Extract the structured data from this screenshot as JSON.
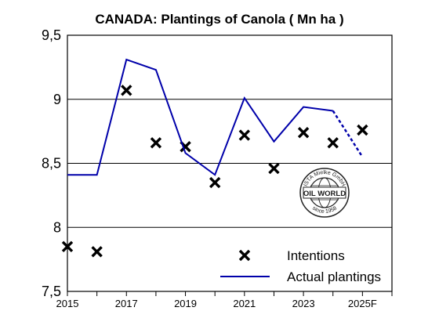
{
  "chart_data": {
    "type": "line",
    "title": "CANADA: Plantings of Canola ( Mn ha )",
    "xlabel": "",
    "ylabel": "",
    "x_tick_labels": [
      {
        "x": 2015,
        "label": "2015"
      },
      {
        "x": 2017,
        "label": "2017"
      },
      {
        "x": 2019,
        "label": "2019"
      },
      {
        "x": 2021,
        "label": "2021"
      },
      {
        "x": 2023,
        "label": "2023"
      },
      {
        "x": 2025,
        "label": "2025F"
      }
    ],
    "y_tick_labels": [
      {
        "y": 7.5,
        "label": "7,5"
      },
      {
        "y": 8,
        "label": "8"
      },
      {
        "y": 8.5,
        "label": "8,5"
      },
      {
        "y": 9,
        "label": "9"
      },
      {
        "y": 9.5,
        "label": "9,5"
      }
    ],
    "xlim": [
      2015,
      2026
    ],
    "ylim": [
      7.5,
      9.5
    ],
    "grid": "horizontal",
    "legend_position": "bottom-right",
    "series": [
      {
        "name": "Intentions",
        "kind": "scatter-x",
        "color": "#000000",
        "points": [
          {
            "x": 2015,
            "y": 7.85
          },
          {
            "x": 2016,
            "y": 7.81
          },
          {
            "x": 2017,
            "y": 9.07
          },
          {
            "x": 2018,
            "y": 8.66
          },
          {
            "x": 2019,
            "y": 8.63
          },
          {
            "x": 2020,
            "y": 8.35
          },
          {
            "x": 2021,
            "y": 8.72
          },
          {
            "x": 2022,
            "y": 8.46
          },
          {
            "x": 2023,
            "y": 8.74
          },
          {
            "x": 2024,
            "y": 8.66
          },
          {
            "x": 2025,
            "y": 8.76
          }
        ]
      },
      {
        "name": "Actual plantings",
        "kind": "line",
        "color": "#0000aa",
        "points": [
          {
            "x": 2015,
            "y": 8.41
          },
          {
            "x": 2016,
            "y": 8.41
          },
          {
            "x": 2017,
            "y": 9.31
          },
          {
            "x": 2018,
            "y": 9.23
          },
          {
            "x": 2019,
            "y": 8.58
          },
          {
            "x": 2020,
            "y": 8.41
          },
          {
            "x": 2021,
            "y": 9.01
          },
          {
            "x": 2022,
            "y": 8.67
          },
          {
            "x": 2023,
            "y": 8.94
          },
          {
            "x": 2024,
            "y": 8.91
          },
          {
            "x": 2025,
            "y": 8.55
          }
        ],
        "dashed_from_x": 2024
      }
    ],
    "logo": {
      "top_text": "ISTA Mielke GmbH",
      "center_text": "OIL WORLD",
      "bottom_text": "since 1958"
    }
  }
}
